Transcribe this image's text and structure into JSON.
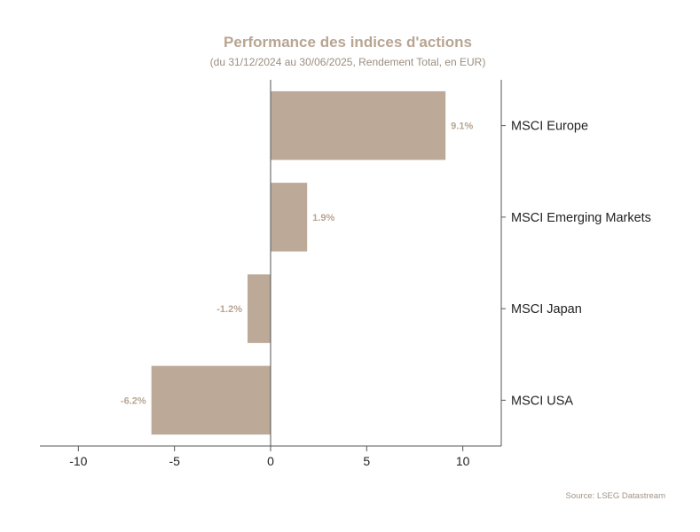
{
  "chart_data": {
    "type": "bar",
    "orientation": "horizontal",
    "title": "Performance des indices d'actions",
    "subtitle": "(du 31/12/2024 au 30/06/2025, Rendement Total, en EUR)",
    "categories": [
      "MSCI Europe",
      "MSCI Emerging Markets",
      "MSCI Japan",
      "MSCI USA"
    ],
    "values": [
      9.1,
      1.9,
      -1.2,
      -6.2
    ],
    "data_labels": [
      "9.1%",
      "1.9%",
      "-1.2%",
      "-6.2%"
    ],
    "xlim": [
      -12,
      12
    ],
    "xticks": [
      -10,
      -5,
      0,
      5,
      10
    ],
    "xtick_labels": [
      "-10",
      "-5",
      "0",
      "5",
      "10"
    ],
    "xlabel": "",
    "ylabel": "",
    "grid": false,
    "legend": "none",
    "source": "Source: LSEG Datastream"
  },
  "colors": {
    "bar": "#bca998",
    "title": "#b8a593",
    "subtitle": "#9c8e80",
    "data_label": "#b8a593",
    "axis": "#555555",
    "source": "#a09488"
  }
}
